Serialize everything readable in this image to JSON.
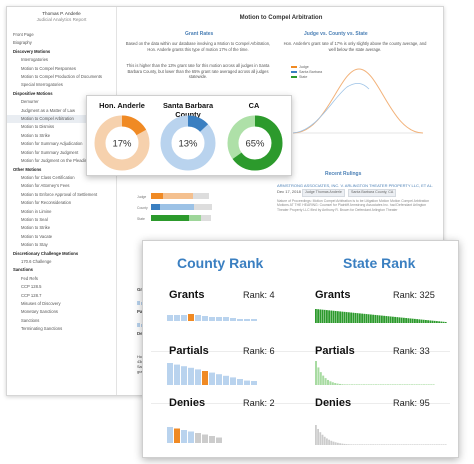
{
  "report": {
    "author": "Thomas P. Anderle",
    "subtitle": "Judicial Analytics Report",
    "title": "Motion to Compel Arbitration",
    "sidebar": [
      {
        "label": "Front Page",
        "kind": "item"
      },
      {
        "label": "Biography",
        "kind": "item"
      },
      {
        "label": "Discovery Motions",
        "kind": "section"
      },
      {
        "label": "Interrogatories",
        "kind": "child"
      },
      {
        "label": "Motion to Compel Responses",
        "kind": "child"
      },
      {
        "label": "Motion to Compel Production of Documents",
        "kind": "child"
      },
      {
        "label": "Special Interrogatories",
        "kind": "child"
      },
      {
        "label": "Dispositive Motions",
        "kind": "section"
      },
      {
        "label": "Demurrer",
        "kind": "child"
      },
      {
        "label": "Judgment as a Matter of Law",
        "kind": "child"
      },
      {
        "label": "Motion to Compel Arbitration",
        "kind": "child",
        "active": true
      },
      {
        "label": "Motion to Dismiss",
        "kind": "child"
      },
      {
        "label": "Motion to Strike",
        "kind": "child"
      },
      {
        "label": "Motion for Summary Adjudication",
        "kind": "child"
      },
      {
        "label": "Motion for Summary Judgment",
        "kind": "child"
      },
      {
        "label": "Motion for Judgment on the Pleadings",
        "kind": "child"
      },
      {
        "label": "Other Motions",
        "kind": "section"
      },
      {
        "label": "Motion for Class Certification",
        "kind": "child"
      },
      {
        "label": "Motion for Attorney's Fees",
        "kind": "child"
      },
      {
        "label": "Motion to Enforce Approval of Settlement",
        "kind": "child"
      },
      {
        "label": "Motion for Reconsideration",
        "kind": "child"
      },
      {
        "label": "Motion in Limine",
        "kind": "child"
      },
      {
        "label": "Motion to Seal",
        "kind": "child"
      },
      {
        "label": "Motion to Strike",
        "kind": "child"
      },
      {
        "label": "Motion to Vacate",
        "kind": "child"
      },
      {
        "label": "Motion to Stay",
        "kind": "child"
      },
      {
        "label": "Discretionary Challenge Motions",
        "kind": "section"
      },
      {
        "label": "170.6 Challenge",
        "kind": "child"
      },
      {
        "label": "Sanctions",
        "kind": "section"
      },
      {
        "label": "Fed Refs",
        "kind": "child"
      },
      {
        "label": "CCP 128.5",
        "kind": "child"
      },
      {
        "label": "CCP 128.7",
        "kind": "child"
      },
      {
        "label": "Misuses of Discovery",
        "kind": "child"
      },
      {
        "label": "Monetary Sanctions",
        "kind": "child"
      },
      {
        "label": "Sanctions",
        "kind": "child"
      },
      {
        "label": "Terminating Sanctions",
        "kind": "child"
      }
    ],
    "grant_rates_title": "Grant Rates",
    "grant_rates_para1": "Based on the data within our database involving a Motion to Compel Arbitration, Hon. Anderle grants this type of motion 17% of the time.",
    "grant_rates_para2": "This is higher than the 13% grant rate for this motion across all judges in Santa Barbara County, but lower than the 65% grant rate averaged across all judges statewide.",
    "jcs_title": "Judge vs. County vs. State",
    "jcs_para": "Hon. Anderle's grant rate of 17% is only slightly above the county average, and well below the state average.",
    "jcs_legend": [
      "Judge",
      "Santa Barbara",
      "State"
    ],
    "bar_labels": [
      "Judge",
      "County",
      "State"
    ],
    "recent_title": "Recent Rulings",
    "ruling_link": "ARMSTRONG ASSOCIATES, INC. V. ARLINGTON THEATER PROPERTY LLC, ET AL.",
    "ruling_date": "Dec 17, 2018",
    "ruling_tags": [
      "Judge Thomas Anderle",
      "Santa Barbara County, CA"
    ],
    "ruling_text": "Nature of Proceedings: Motion Compel Arbitration is to be Litigation Motion Motion Compel Arbitration Motions AT THE HEARING: Counsel for Plaintiff Armstrong Associates Inc. had Defendant Arlington Theater Property LLC filed by Anthony R. Brown for Defendant Arlington Theater",
    "frag_county": "Co",
    "frag_grants": "Gra",
    "frag_partials": "Par",
    "frag_denies": "Den",
    "frag_text": "Hon. Ande 43rd pe Santa Ba granting th"
  },
  "donuts": {
    "items": [
      {
        "label": "Hon. Anderle",
        "value": "17%",
        "pct": 17,
        "color": "#f08a24",
        "track": "#f6d1ad"
      },
      {
        "label": "Santa Barbara County",
        "value": "13%",
        "pct": 13,
        "color": "#3a7fc1",
        "track": "#b9d3ee"
      },
      {
        "label": "CA",
        "value": "65%",
        "pct": 65,
        "color": "#2c9a2c",
        "track": "#aee0a8"
      }
    ]
  },
  "rank": {
    "county_title": "County Rank",
    "state_title": "State Rank",
    "rows": [
      {
        "label": "Grants",
        "county": "Rank: 4",
        "state": "Rank: 325"
      },
      {
        "label": "Partials",
        "county": "Rank: 6",
        "state": "Rank: 33"
      },
      {
        "label": "Denies",
        "county": "Rank: 2",
        "state": "Rank: 95"
      }
    ],
    "colors": {
      "county": "#3a7fc1",
      "county_light": "#b9d3ee",
      "highlight": "#f08a24",
      "state": "#2c9a2c",
      "state_light": "#a8dba2",
      "gray": "#cccccc"
    }
  }
}
